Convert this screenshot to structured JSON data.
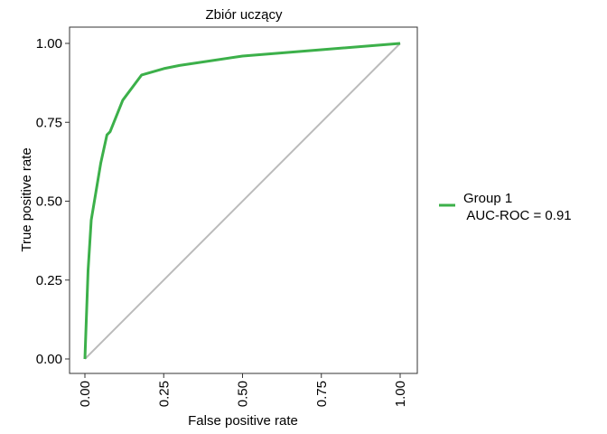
{
  "chart_data": {
    "type": "line",
    "title": "Zbiór uczący",
    "xlabel": "False positive rate",
    "ylabel": "True positive rate",
    "xlim": [
      0,
      1
    ],
    "ylim": [
      0,
      1
    ],
    "x_ticks": [
      "0.00",
      "0.25",
      "0.50",
      "0.75",
      "1.00"
    ],
    "y_ticks": [
      "0.00",
      "0.25",
      "0.50",
      "0.75",
      "1.00"
    ],
    "grid": false,
    "legend_position": "right",
    "reference_line": {
      "x": [
        0,
        1
      ],
      "y": [
        0,
        1
      ],
      "color": "#bbbbbb"
    },
    "series": [
      {
        "name": "Group 1",
        "label_line2": " AUC-ROC = 0.91",
        "color": "#3cb04a",
        "x": [
          0.0,
          0.01,
          0.02,
          0.03,
          0.05,
          0.07,
          0.08,
          0.12,
          0.18,
          0.25,
          0.3,
          0.5,
          0.75,
          1.0
        ],
        "y": [
          0.0,
          0.28,
          0.44,
          0.5,
          0.62,
          0.71,
          0.72,
          0.82,
          0.9,
          0.92,
          0.93,
          0.96,
          0.98,
          1.0
        ]
      }
    ]
  }
}
